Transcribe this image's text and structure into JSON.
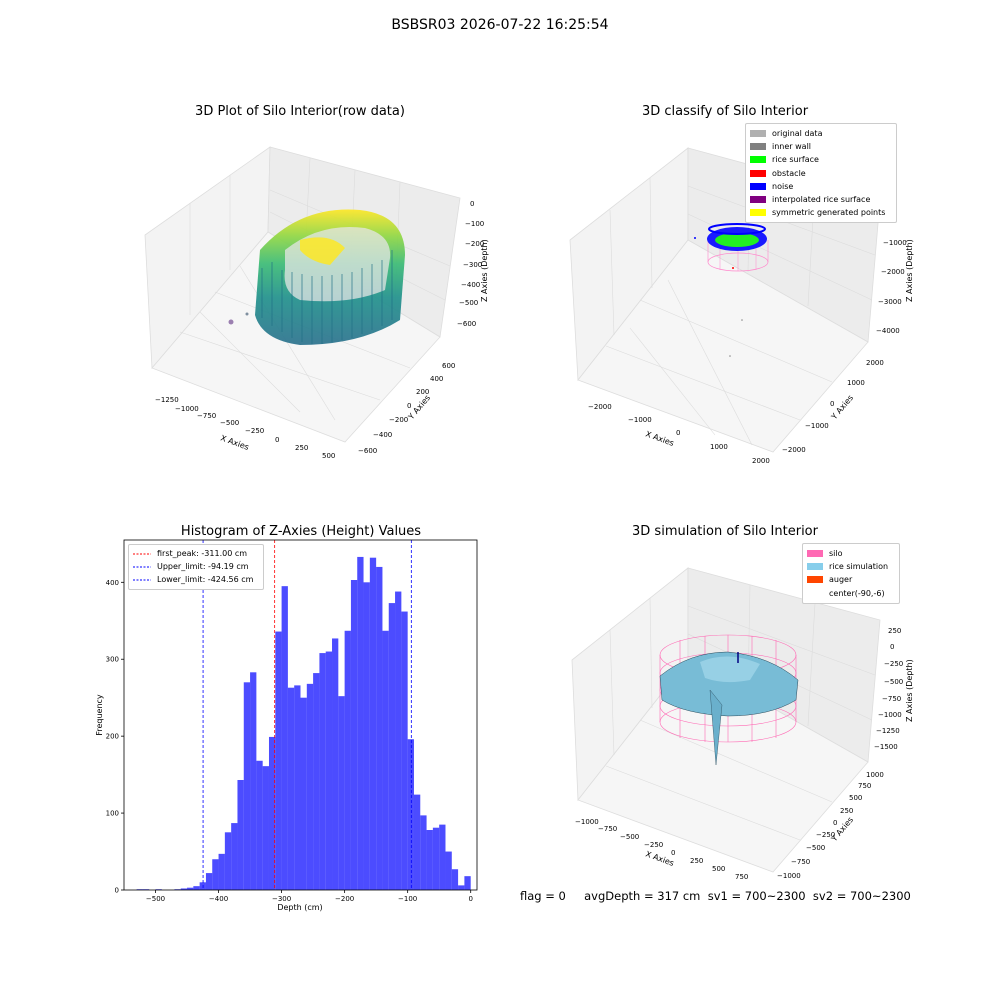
{
  "suptitle": "BSBSR03 2026-07-22 16:25:54",
  "panels": {
    "raw": {
      "title": "3D Plot of Silo Interior(row data)",
      "xlabel": "X Axies",
      "ylabel": "Y Axies",
      "zlabel": "Z Axies (Depth)",
      "xticks": [
        "−1250",
        "−1000",
        "−750",
        "−500",
        "−250",
        "0",
        "250",
        "500"
      ],
      "yticks": [
        "−600",
        "−400",
        "−200",
        "0",
        "200",
        "400",
        "600"
      ],
      "zticks": [
        "0",
        "−100",
        "−200",
        "−300",
        "−400",
        "−500",
        "−600"
      ],
      "colormap": "viridis"
    },
    "classify": {
      "title": "3D classify of Silo Interior",
      "xlabel": "X Axies",
      "ylabel": "Y Axies",
      "zlabel": "Z Axies (Depth)",
      "xticks": [
        "−2000",
        "−1000",
        "0",
        "1000",
        "2000"
      ],
      "yticks": [
        "−2000",
        "−1000",
        "0",
        "1000",
        "2000"
      ],
      "zticks": [
        "0",
        "−1000",
        "−2000",
        "−3000",
        "−4000"
      ],
      "legend": [
        {
          "label": "original data",
          "color": "#b0b0b0"
        },
        {
          "label": "inner wall",
          "color": "#808080"
        },
        {
          "label": "rice surface",
          "color": "#00ff00"
        },
        {
          "label": "obstacle",
          "color": "#ff0000"
        },
        {
          "label": "noise",
          "color": "#0000ff"
        },
        {
          "label": "interpolated rice surface",
          "color": "#800080"
        },
        {
          "label": "symmetric generated points",
          "color": "#ffff00"
        }
      ]
    },
    "simulation": {
      "title": "3D simulation of Silo Interior",
      "xlabel": "X Axies",
      "ylabel": "Y Axies",
      "zlabel": "Z Axies (Depth)",
      "xticks": [
        "−1000",
        "−750",
        "−500",
        "−250",
        "0",
        "250",
        "500",
        "750"
      ],
      "yticks": [
        "−1000",
        "−750",
        "−500",
        "−250",
        "0",
        "250",
        "500",
        "750",
        "1000"
      ],
      "zticks": [
        "250",
        "0",
        "−250",
        "−500",
        "−750",
        "−1000",
        "−1250",
        "−1500"
      ],
      "legend": [
        {
          "label": "silo",
          "color": "#ff69b4"
        },
        {
          "label": "rice simulation",
          "color": "#87ceeb"
        },
        {
          "label": "auger",
          "color": "#ff4500"
        },
        {
          "label": "center(-90,-6)",
          "color": ""
        }
      ]
    }
  },
  "status_line": "flag = 0     avgDepth = 317 cm  sv1 = 700~2300  sv2 = 700~2300",
  "chart_data": {
    "type": "bar",
    "title": "Histogram of Z-Axies (Height) Values",
    "xlabel": "Depth (cm)",
    "ylabel": "Frequency",
    "xlim": [
      -550,
      10
    ],
    "ylim": [
      0,
      455
    ],
    "xticks": [
      -500,
      -400,
      -300,
      -200,
      -100,
      0
    ],
    "yticks": [
      0,
      100,
      200,
      300,
      400
    ],
    "bar_color": "#0000ff",
    "bin_start": -530,
    "bin_width": 10,
    "values": [
      1,
      1,
      0,
      1,
      0,
      0,
      1,
      2,
      3,
      5,
      10,
      22,
      40,
      47,
      75,
      87,
      143,
      270,
      283,
      168,
      161,
      199,
      336,
      395,
      263,
      266,
      250,
      268,
      282,
      308,
      310,
      327,
      252,
      337,
      403,
      433,
      400,
      432,
      420,
      337,
      373,
      388,
      362,
      196,
      124,
      97,
      78,
      81,
      85,
      50,
      27,
      6,
      18
    ],
    "lines": [
      {
        "label": "first_peak: -311.00 cm",
        "x": -311.0,
        "color": "#ff0000"
      },
      {
        "label": "Upper_limit: -94.19 cm",
        "x": -94.19,
        "color": "#0000ff"
      },
      {
        "label": "Lower_limit: -424.56 cm",
        "x": -424.56,
        "color": "#0000ff"
      }
    ],
    "legend_position": "upper left"
  }
}
